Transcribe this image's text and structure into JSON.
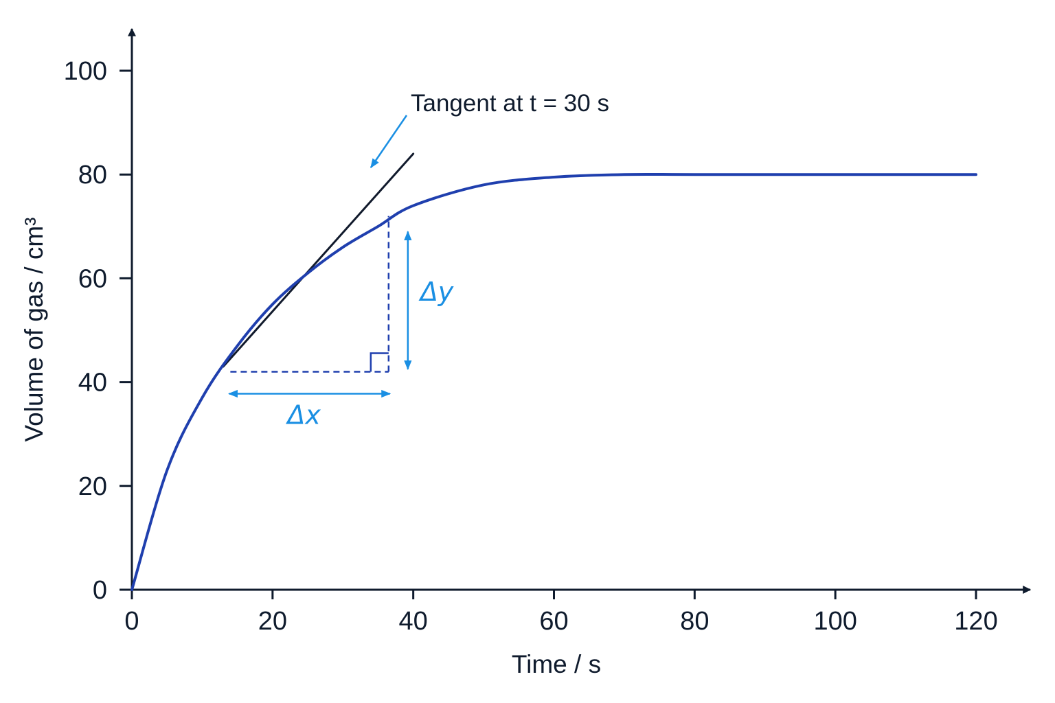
{
  "chart_data": {
    "type": "line",
    "title": "",
    "xlabel": "Time / s",
    "ylabel": "Volume of gas / cm³",
    "xlim": [
      0,
      120
    ],
    "ylim": [
      0,
      100
    ],
    "xticks": [
      "0",
      "20",
      "40",
      "60",
      "80",
      "100",
      "120"
    ],
    "yticks": [
      "0",
      "20",
      "40",
      "60",
      "80",
      "100"
    ],
    "grid": false,
    "series": [
      {
        "values_x": [
          0,
          5,
          10,
          15,
          20,
          25,
          30,
          35,
          40,
          50,
          60,
          70,
          80,
          100,
          120
        ],
        "values_y": [
          0,
          23,
          37,
          47,
          55,
          61,
          66,
          70,
          74,
          78,
          79.5,
          80,
          80,
          80,
          80
        ]
      }
    ],
    "tangent": {
      "x": [
        13,
        40
      ],
      "y": [
        43,
        84
      ]
    },
    "triangle": {
      "x_start": 14,
      "x_end": 36.5,
      "y_low": 42,
      "y_high": 72
    },
    "annotations": {
      "tangent_label": "Tangent at t = 30 s",
      "delta_x": "Δx",
      "delta_y": "Δy"
    },
    "colors": {
      "curve": "#1f3fae",
      "tangent": "#111a2c",
      "annotation": "#1a8fe3",
      "triangle": "#1f3fae",
      "axis": "#0f1b2d"
    }
  }
}
